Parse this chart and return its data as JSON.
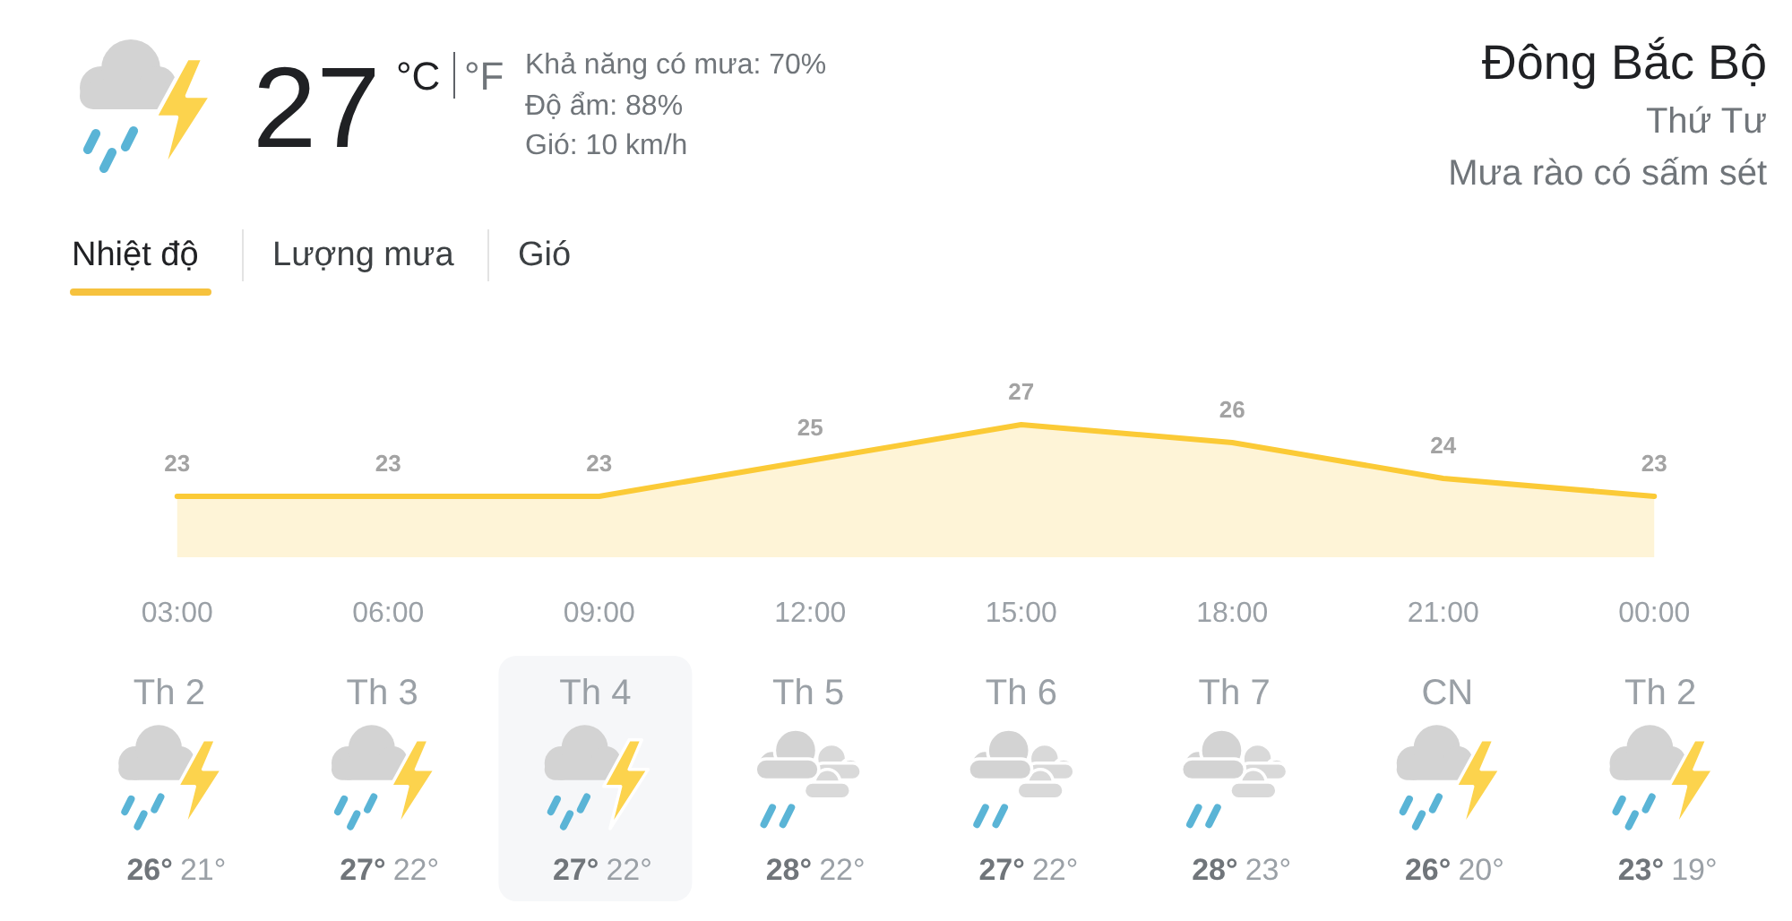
{
  "chart_data": [
    {
      "type": "other",
      "title": "Đông Bắc Bộ",
      "subtitle": "Thứ Tư",
      "annotations": [
        "27",
        "°C",
        "°F",
        "Khả năng có mưa: 70%",
        "Độ ẩm: 88%",
        "Gió: 10 km/h",
        "Mưa rào có sấm sét",
        "Nhiệt độ",
        "Lượng mưa",
        "Gió"
      ]
    },
    {
      "type": "area",
      "categories": [
        "03:00",
        "06:00",
        "09:00",
        "12:00",
        "15:00",
        "18:00",
        "21:00",
        "00:00"
      ],
      "values": [
        23,
        23,
        23,
        25,
        27,
        26,
        24,
        23
      ],
      "color": "#fbca36",
      "data_labels": true
    },
    {
      "type": "other",
      "categories": [
        "Th 2",
        "Th 3",
        "Th 4",
        "Th 5",
        "Th 6",
        "Th 7",
        "CN",
        "Th 2"
      ],
      "annotations": [
        "26°",
        "21°",
        "27°",
        "22°",
        "27°",
        "22°",
        "28°",
        "22°",
        "27°",
        "22°",
        "28°",
        "23°",
        "26°",
        "20°",
        "23°",
        "19°"
      ]
    }
  ]
}
